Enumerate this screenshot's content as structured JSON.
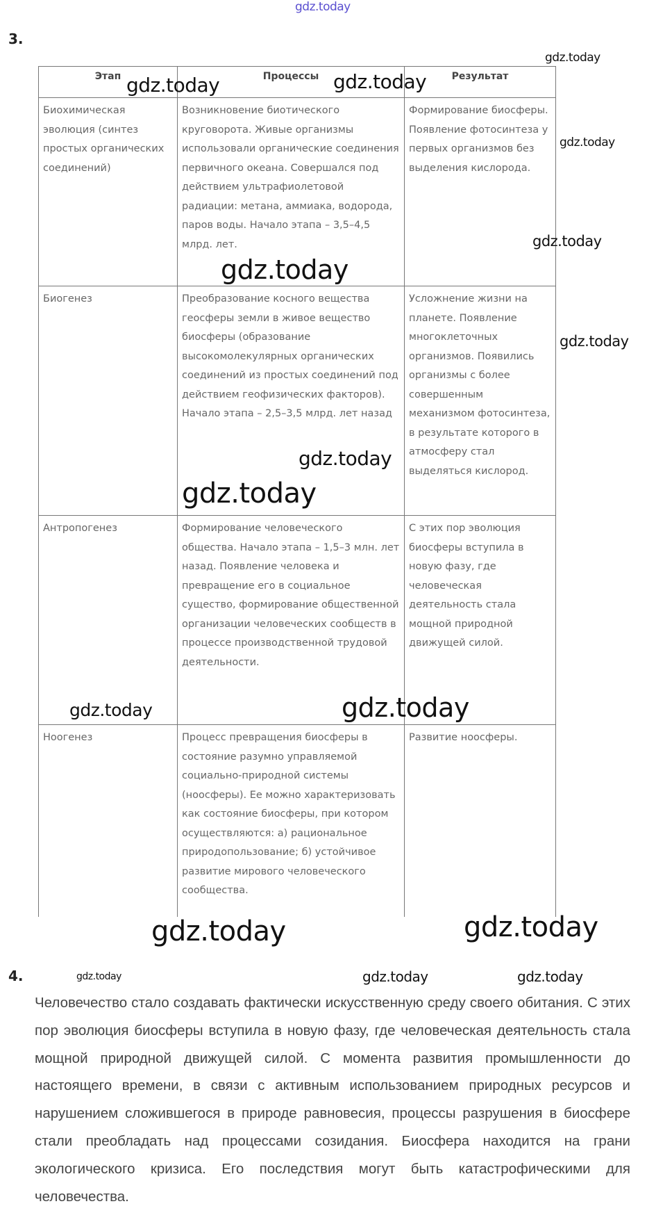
{
  "watermark": "gdz.today",
  "task3": {
    "number": "3.",
    "table": {
      "headers": [
        "Этап",
        "Процессы",
        "Результат"
      ],
      "rows": [
        [
          "Биохимическая эволюция (синтез простых органических соединений)",
          "Возникновение биотического круговорота. Живые организмы использовали органические соединения первичного океана. Совершался под действием ультрафиолетовой радиации: метана, аммиака, водорода, паров воды. Начало этапа – 3,5–4,5 млрд. лет.",
          "Формирование биосферы. Появление фотосинтеза у первых организмов без выделения кислорода."
        ],
        [
          "Биогенез",
          "Преобразование косного вещества геосферы земли в живое вещество биосферы (образование высокомолекулярных органических соединений из простых соединений под действием геофизических факторов). Начало этапа – 2,5–3,5 млрд. лет назад",
          "Усложнение жизни на планете. Появление многоклеточных организмов. Появились организмы с более совершенным механизмом фотосинтеза, в результате которого в атмосферу стал выделяться кислород."
        ],
        [
          "Антропогенез",
          "Формирование человеческого общества. Начало этапа – 1,5–3 млн. лет назад. Появление человека и превращение его в социальное существо, формирование общественной организации человеческих сообществ в процессе производственной трудовой деятельности.",
          "С этих пор эволюция биосферы вступила в новую фазу, где человеческая деятельность стала мощной природной движущей силой."
        ],
        [
          "Ноогенез",
          "Процесс превращения биосферы в состояние разумно управляемой социально-природной системы (ноосферы). Ее можно характеризовать как состояние биосферы, при котором осуществляются: а) рациональное природопользование; б) устойчивое развитие мирового человеческого сообщества.",
          "Развитие ноосферы."
        ]
      ]
    }
  },
  "task4": {
    "number": "4.",
    "text": "Человечество стало создавать фактически искусственную среду своего обитания. С этих пор эволюция биосферы вступила в новую фазу, где человеческая деятельность стала мощной природной движущей силой. С момента развития промышленности до настоящего времени, в связи с активным использованием природных ресурсов и нарушением сложившегося в природе равновесия, процессы разрушения в биосфере стали преобладать над процессами созидания. Биосфера находится на грани экологического кризиса. Его последствия могут быть катастрофическими для человечества."
  }
}
